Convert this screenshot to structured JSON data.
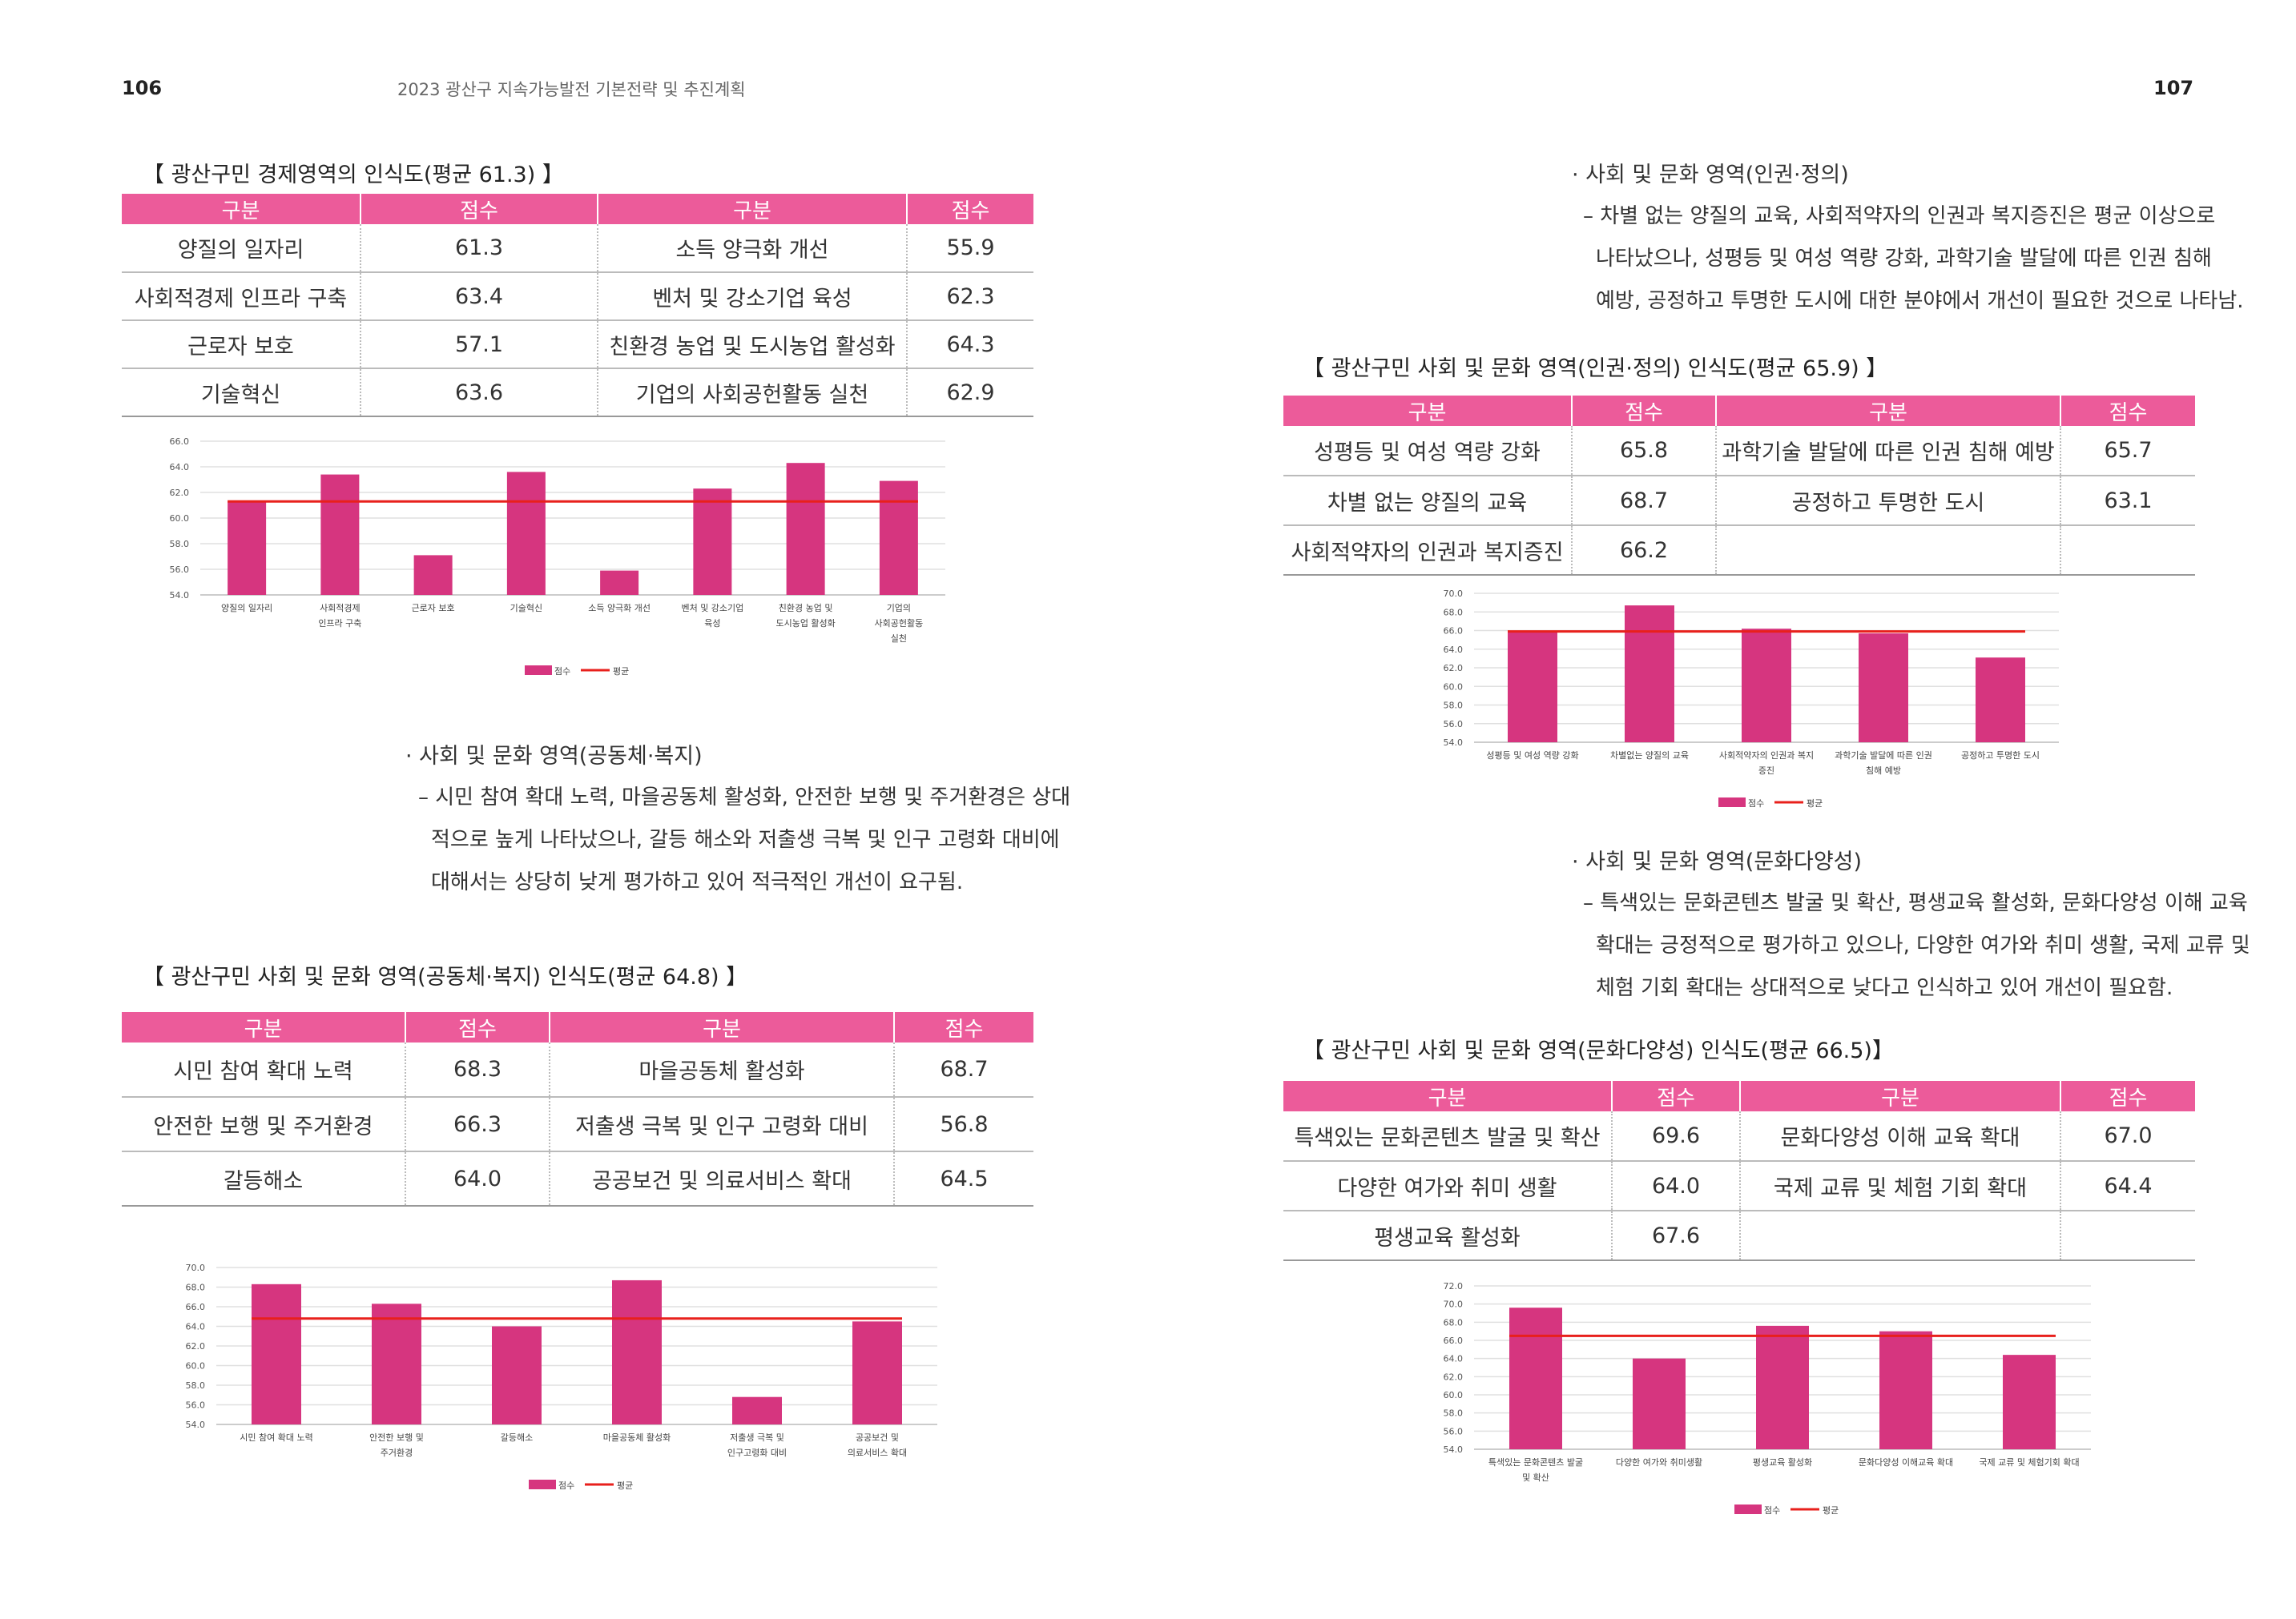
{
  "header": {
    "left_page_number": "106",
    "running_title": "2023 광산구 지속가능발전 기본전략 및 추진계획",
    "right_page_number": "107"
  },
  "legend": {
    "score": "점수",
    "average": "평균"
  },
  "table_headers": {
    "category": "구분",
    "score": "점수"
  },
  "sections": {
    "community": {
      "heading": "· 사회 및 문화 영역(공동체·복지)",
      "lines": [
        "– 시민 참여 확대 노력, 마을공동체 활성화, 안전한 보행 및 주거환경은 상대",
        "적으로 높게 나타났으나, 갈등 해소와 저출생 극복 및 인구 고령화 대비에",
        "대해서는 상당히 낮게 평가하고 있어 적극적인 개선이 요구됨."
      ]
    },
    "rights": {
      "heading": "· 사회 및 문화 영역(인권·정의)",
      "lines": [
        "– 차별 없는 양질의 교육, 사회적약자의 인권과 복지증진은 평균 이상으로",
        "나타났으나, 성평등 및 여성 역량 강화, 과학기술 발달에 따른 인권 침해",
        "예방, 공정하고 투명한 도시에 대한 분야에서 개선이 필요한 것으로 나타남."
      ]
    },
    "diversity": {
      "heading": "· 사회 및 문화 영역(문화다양성)",
      "lines": [
        "– 특색있는 문화콘텐츠 발굴 및 확산, 평생교육 활성화, 문화다양성 이해 교육",
        "확대는 긍정적으로 평가하고 있으나, 다양한 여가와 취미 생활, 국제 교류 및",
        "체험 기회 확대는 상대적으로 낮다고 인식하고 있어 개선이 필요함."
      ]
    }
  },
  "tables": {
    "economy": {
      "caption": "【 광산구민 경제영역의 인식도(평균 61.3) 】",
      "rows": [
        [
          "양질의 일자리",
          "61.3",
          "소득 양극화 개선",
          "55.9"
        ],
        [
          "사회적경제 인프라 구축",
          "63.4",
          "벤처 및 강소기업 육성",
          "62.3"
        ],
        [
          "근로자 보호",
          "57.1",
          "친환경 농업 및 도시농업 활성화",
          "64.3"
        ],
        [
          "기술혁신",
          "63.6",
          "기업의 사회공헌활동 실천",
          "62.9"
        ]
      ]
    },
    "community": {
      "caption": "【 광산구민 사회 및 문화 영역(공동체·복지) 인식도(평균 64.8) 】",
      "rows": [
        [
          "시민 참여 확대 노력",
          "68.3",
          "마을공동체 활성화",
          "68.7"
        ],
        [
          "안전한 보행 및 주거환경",
          "66.3",
          "저출생 극복 및 인구 고령화 대비",
          "56.8"
        ],
        [
          "갈등해소",
          "64.0",
          "공공보건 및 의료서비스 확대",
          "64.5"
        ]
      ]
    },
    "rights": {
      "caption": "【 광산구민 사회 및 문화 영역(인권·정의) 인식도(평균 65.9) 】",
      "rows": [
        [
          "성평등 및 여성 역량 강화",
          "65.8",
          "과학기술 발달에 따른 인권 침해 예방",
          "65.7"
        ],
        [
          "차별 없는 양질의 교육",
          "68.7",
          "공정하고 투명한 도시",
          "63.1"
        ],
        [
          "사회적약자의 인권과 복지증진",
          "66.2",
          "",
          ""
        ]
      ]
    },
    "diversity": {
      "caption": "【 광산구민 사회 및 문화 영역(문화다양성) 인식도(평균 66.5)】",
      "rows": [
        [
          "특색있는 문화콘텐츠 발굴 및 확산",
          "69.6",
          "문화다양성 이해 교육 확대",
          "67.0"
        ],
        [
          "다양한 여가와 취미 생활",
          "64.0",
          "국제 교류 및 체험 기회 확대",
          "64.4"
        ],
        [
          "평생교육 활성화",
          "67.6",
          "",
          ""
        ]
      ]
    }
  },
  "chart_data": [
    {
      "id": "economy",
      "type": "bar",
      "categories": [
        [
          "양질의 일자리"
        ],
        [
          "사회적경제",
          "인프라 구축"
        ],
        [
          "근로자 보호"
        ],
        [
          "기술혁신"
        ],
        [
          "소득 양극화 개선"
        ],
        [
          "벤처 및 강소기업",
          "육성"
        ],
        [
          "친환경 농업 및",
          "도시농업 활성화"
        ],
        [
          "기업의",
          "사회공헌활동",
          "실천"
        ]
      ],
      "series": [
        {
          "name": "점수",
          "type": "bar",
          "values": [
            61.3,
            63.4,
            57.1,
            63.6,
            55.9,
            62.3,
            64.3,
            62.9
          ],
          "color": "#d6357f"
        },
        {
          "name": "평균",
          "type": "line",
          "value": 61.3,
          "color": "#e8201c"
        }
      ],
      "ylim": [
        54.0,
        66.0
      ],
      "yticks": [
        "54.0",
        "56.0",
        "58.0",
        "60.0",
        "62.0",
        "64.0",
        "66.0"
      ],
      "grid": true,
      "legend_position": "bottom"
    },
    {
      "id": "community",
      "type": "bar",
      "categories": [
        [
          "시민 참여 확대 노력"
        ],
        [
          "안전한 보행 및",
          "주거환경"
        ],
        [
          "갈등해소"
        ],
        [
          "마을공동체 활성화"
        ],
        [
          "저출생 극복 및",
          "인구고령화 대비"
        ],
        [
          "공공보건 및",
          "의료서비스 확대"
        ]
      ],
      "series": [
        {
          "name": "점수",
          "type": "bar",
          "values": [
            68.3,
            66.3,
            64.0,
            68.7,
            56.8,
            64.5
          ],
          "color": "#d6357f"
        },
        {
          "name": "평균",
          "type": "line",
          "value": 64.8,
          "color": "#e8201c"
        }
      ],
      "ylim": [
        54.0,
        70.0
      ],
      "yticks": [
        "54.0",
        "56.0",
        "58.0",
        "60.0",
        "62.0",
        "64.0",
        "66.0",
        "68.0",
        "70.0"
      ],
      "grid": true,
      "legend_position": "bottom"
    },
    {
      "id": "rights",
      "type": "bar",
      "categories": [
        [
          "성평등 및 여성 역량 강화"
        ],
        [
          "차별없는 양질의 교육"
        ],
        [
          "사회적약자의 인권과 복지",
          "증진"
        ],
        [
          "과학기술 발달에 따른 인권",
          "침해 예방"
        ],
        [
          "공정하고 투명한 도시"
        ]
      ],
      "series": [
        {
          "name": "점수",
          "type": "bar",
          "values": [
            65.8,
            68.7,
            66.2,
            65.7,
            63.1
          ],
          "color": "#d6357f"
        },
        {
          "name": "평균",
          "type": "line",
          "value": 65.9,
          "color": "#e8201c"
        }
      ],
      "ylim": [
        54.0,
        70.0
      ],
      "yticks": [
        "54.0",
        "56.0",
        "58.0",
        "60.0",
        "62.0",
        "64.0",
        "66.0",
        "68.0",
        "70.0"
      ],
      "grid": true,
      "legend_position": "bottom"
    },
    {
      "id": "diversity",
      "type": "bar",
      "categories": [
        [
          "특색있는 문화콘텐츠 발굴",
          "및 확산"
        ],
        [
          "다양한 여가와 취미생활"
        ],
        [
          "평생교육 활성화"
        ],
        [
          "문화다양성 이해교육 확대"
        ],
        [
          "국제 교류 및 체험기회 확대"
        ]
      ],
      "series": [
        {
          "name": "점수",
          "type": "bar",
          "values": [
            69.6,
            64.0,
            67.6,
            67.0,
            64.4
          ],
          "color": "#d6357f"
        },
        {
          "name": "평균",
          "type": "line",
          "value": 66.5,
          "color": "#e8201c"
        }
      ],
      "ylim": [
        54.0,
        72.0
      ],
      "yticks": [
        "54.0",
        "56.0",
        "58.0",
        "60.0",
        "62.0",
        "64.0",
        "66.0",
        "68.0",
        "70.0",
        "72.0"
      ],
      "grid": true,
      "legend_position": "bottom"
    }
  ]
}
